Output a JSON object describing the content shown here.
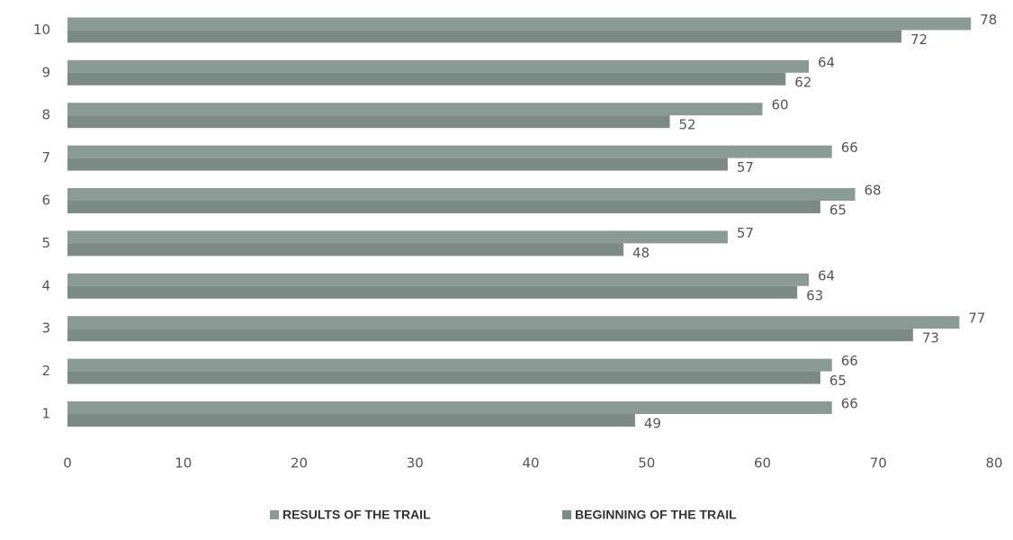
{
  "chart_data": {
    "type": "barh",
    "categories": [
      "1",
      "2",
      "3",
      "4",
      "5",
      "6",
      "7",
      "8",
      "9",
      "10"
    ],
    "series": [
      {
        "name": "RESULTS OF THE TRAIL",
        "color": "#8a9a94",
        "values": [
          66,
          66,
          77,
          64,
          57,
          68,
          66,
          60,
          64,
          78
        ]
      },
      {
        "name": "BEGINNING OF THE TRAIL",
        "color": "#7b8a85",
        "values": [
          49,
          65,
          73,
          63,
          48,
          65,
          57,
          52,
          62,
          72
        ]
      }
    ],
    "xlim": [
      0,
      80
    ],
    "xticks": [
      0,
      10,
      20,
      30,
      40,
      50,
      60,
      70,
      80
    ],
    "grid": false,
    "legend": "bottom"
  }
}
